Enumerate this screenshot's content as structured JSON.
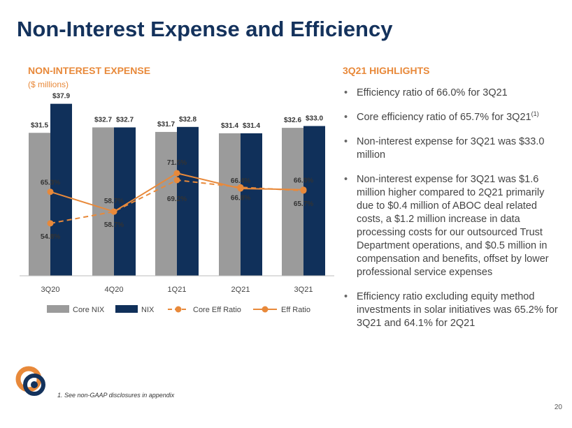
{
  "page_title": "Non-Interest Expense and Efficiency",
  "chart_heading": "NON-INTEREST EXPENSE",
  "chart_subheading": "($ millions)",
  "highlights_heading": "3Q21 HIGHLIGHTS",
  "highlights": [
    "Efficiency ratio of 66.0% for 3Q21",
    "Core efficiency ratio of 65.7% for 3Q21",
    "Non-interest expense for 3Q21 was $33.0 million",
    "Non-interest expense for 3Q21 was $1.6 million higher compared to 2Q21 primarily due to $0.4 million of ABOC deal related costs, a $1.2 million increase in data processing costs for our outsourced Trust Department operations, and $0.5 million in compensation and benefits, offset by lower professional service expenses",
    "Efficiency ratio excluding equity method investments in solar initiatives was 65.2% for 3Q21 and 64.1% for 2Q21"
  ],
  "highlight_footnote_marker": "(1)",
  "footnote": "1.  See non-GAAP disclosures in appendix",
  "page_number": "20",
  "colors": {
    "title": "#14325c",
    "accent": "#e8893a",
    "core_nix": "#9b9b9b",
    "nix": "#10305a",
    "line": "#e8893a"
  },
  "chart_data": {
    "type": "bar",
    "categories": [
      "3Q20",
      "4Q20",
      "1Q21",
      "2Q21",
      "3Q21"
    ],
    "series": [
      {
        "name": "Core NIX",
        "kind": "bar",
        "values": [
          31.5,
          32.7,
          31.7,
          31.4,
          32.6
        ],
        "labels": [
          "$31.5",
          "$32.7",
          "$31.7",
          "$31.4",
          "$32.6"
        ]
      },
      {
        "name": "NIX",
        "kind": "bar",
        "values": [
          37.9,
          32.7,
          32.8,
          31.4,
          33.0
        ],
        "labels": [
          "$37.9",
          "$32.7",
          "$32.8",
          "$31.4",
          "$33.0"
        ]
      },
      {
        "name": "Core Eff Ratio",
        "kind": "line",
        "style": "dashed",
        "values": [
          54.8,
          58.7,
          69.2,
          66.8,
          65.7
        ],
        "labels": [
          "54.8%",
          "58.7%",
          "69.2%",
          "66.8%",
          "65.7%"
        ]
      },
      {
        "name": "Eff Ratio",
        "kind": "line",
        "style": "solid",
        "values": [
          65.3,
          58.7,
          71.5,
          66.4,
          66.0
        ],
        "labels": [
          "65.3%",
          "58.7%",
          "71.5%",
          "66.4%",
          "66.0%"
        ]
      }
    ],
    "legend": [
      "Core NIX",
      "NIX",
      "Core Eff Ratio",
      "Eff Ratio"
    ],
    "legend_position": "bottom"
  }
}
